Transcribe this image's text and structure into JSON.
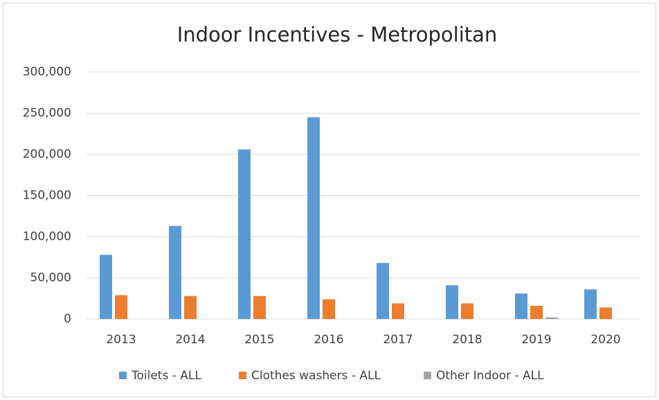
{
  "chart_data": {
    "type": "bar",
    "title": "Indoor Incentives - Metropolitan",
    "categories": [
      "2013",
      "2014",
      "2015",
      "2016",
      "2017",
      "2018",
      "2019",
      "2020"
    ],
    "series": [
      {
        "name": "Toilets - ALL",
        "color": "#5b9bd5",
        "values": [
          78000,
          113000,
          206000,
          245000,
          68000,
          41000,
          31000,
          36000
        ]
      },
      {
        "name": "Clothes washers - ALL",
        "color": "#ed7d31",
        "values": [
          29000,
          28000,
          28000,
          24000,
          19000,
          19000,
          16000,
          14000
        ]
      },
      {
        "name": "Other Indoor - ALL",
        "color": "#a5a5a5",
        "values": [
          0,
          0,
          0,
          0,
          0,
          0,
          2000,
          0
        ]
      }
    ],
    "ylim": [
      0,
      300000
    ],
    "yticks": [
      0,
      {
        "value": 50000,
        "label": "50,000"
      },
      {
        "value": 100000,
        "label": "100,000"
      },
      {
        "value": 150000,
        "label": "150,000"
      },
      {
        "value": 200000,
        "label": "200,000"
      },
      {
        "value": 250000,
        "label": "250,000"
      },
      {
        "value": 300000,
        "label": "300,000"
      }
    ],
    "grid": true,
    "legend": "bottom"
  }
}
